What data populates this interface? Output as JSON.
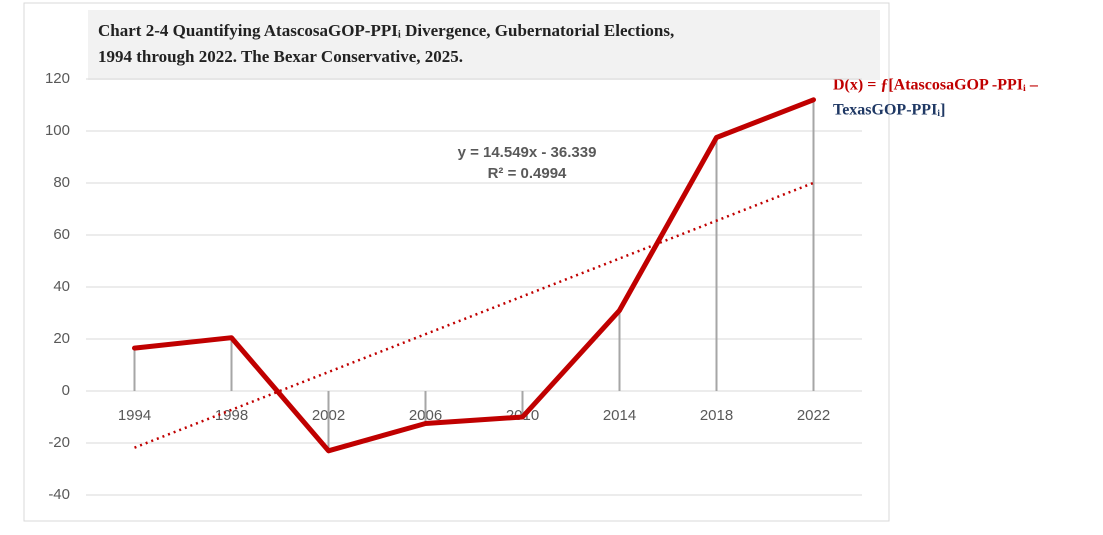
{
  "chart_data": {
    "type": "line",
    "title": [
      "Chart 2-4 Quantifying AtascosaGOP-PPIᵢ Divergence, Gubernatorial Elections,",
      "1994 through 2022. The Bexar Conservative, 2025."
    ],
    "categories": [
      "1994",
      "1998",
      "2002",
      "2006",
      "2010",
      "2014",
      "2018",
      "2022"
    ],
    "values": [
      16.5,
      20.5,
      -23,
      -12.5,
      -10,
      31,
      97.5,
      112
    ],
    "color": "#c00000",
    "drop_lines": true,
    "trendline": {
      "slope": 14.549,
      "intercept": -36.339,
      "equation": "y = 14.549x - 36.339",
      "r2": "R² = 0.4994",
      "color": "#c00000"
    },
    "annotation": [
      "D(x) = ƒ[AtascosaGOP -PPIᵢ –",
      "TexasGOP-PPIᵢ]"
    ],
    "ylim": [
      -40,
      120
    ],
    "yticks": [
      -40,
      -20,
      0,
      20,
      40,
      60,
      80,
      100,
      120
    ],
    "grid": true
  }
}
